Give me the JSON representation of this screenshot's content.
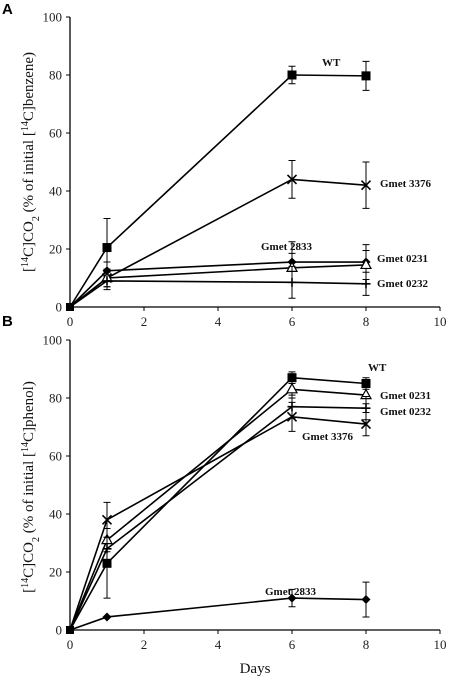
{
  "chart_data": [
    {
      "panel": "A",
      "type": "line",
      "ylabel": "[14C]CO2 (% of initial [14C]benzene)",
      "xlabel": "",
      "xlim": [
        0,
        10
      ],
      "ylim": [
        0,
        100
      ],
      "xticks": [
        0,
        2,
        4,
        6,
        8,
        10
      ],
      "yticks": [
        0,
        20,
        40,
        60,
        80,
        100
      ],
      "series": [
        {
          "name": "WT",
          "marker": "square",
          "x": [
            0,
            1,
            6,
            8
          ],
          "y": [
            0,
            20.5,
            80,
            79.7
          ],
          "err": [
            0,
            10,
            3,
            5
          ]
        },
        {
          "name": "Gmet 3376",
          "marker": "x",
          "x": [
            0,
            1,
            6,
            8
          ],
          "y": [
            0,
            10,
            44,
            42
          ],
          "err": [
            0,
            3,
            6.5,
            8
          ]
        },
        {
          "name": "Gmet 2833",
          "marker": "diamond",
          "x": [
            0,
            1,
            6,
            8
          ],
          "y": [
            0,
            12.5,
            15.5,
            15.5
          ],
          "err": [
            0,
            3,
            7,
            6
          ]
        },
        {
          "name": "Gmet 0231",
          "marker": "triangle",
          "x": [
            0,
            1,
            6,
            8
          ],
          "y": [
            0,
            10,
            13.5,
            14.5
          ],
          "err": [
            0,
            3,
            5,
            5
          ]
        },
        {
          "name": "Gmet 0232",
          "marker": "plus",
          "x": [
            0,
            1,
            6,
            8
          ],
          "y": [
            0,
            9,
            8.5,
            8
          ],
          "err": [
            0,
            3,
            5.5,
            4
          ]
        }
      ]
    },
    {
      "panel": "B",
      "type": "line",
      "ylabel": "[14C]CO2 (% of initial [14C]phenol)",
      "xlabel": "Days",
      "xlim": [
        0,
        10
      ],
      "ylim": [
        0,
        100
      ],
      "xticks": [
        0,
        2,
        4,
        6,
        8,
        10
      ],
      "yticks": [
        0,
        20,
        40,
        60,
        80,
        100
      ],
      "series": [
        {
          "name": "WT",
          "marker": "square",
          "x": [
            0,
            1,
            6,
            8
          ],
          "y": [
            0,
            23,
            87,
            85
          ],
          "err": [
            0,
            12,
            2,
            2
          ]
        },
        {
          "name": "Gmet 0231",
          "marker": "triangle",
          "x": [
            0,
            1,
            6,
            8
          ],
          "y": [
            0,
            31,
            83,
            81
          ],
          "err": [
            0,
            4,
            3,
            3
          ]
        },
        {
          "name": "Gmet 0232",
          "marker": "plus",
          "x": [
            0,
            1,
            6,
            8
          ],
          "y": [
            0,
            28,
            77,
            76.5
          ],
          "err": [
            0,
            4,
            4,
            4
          ]
        },
        {
          "name": "Gmet 3376",
          "marker": "x",
          "x": [
            0,
            1,
            6,
            8
          ],
          "y": [
            0,
            38,
            73.5,
            71
          ],
          "err": [
            0,
            6,
            5,
            4
          ]
        },
        {
          "name": "Gmet 2833",
          "marker": "diamond",
          "x": [
            0,
            1,
            6,
            8
          ],
          "y": [
            0,
            4.5,
            11,
            10.5
          ],
          "err": [
            0,
            0,
            3,
            6
          ]
        }
      ]
    }
  ]
}
